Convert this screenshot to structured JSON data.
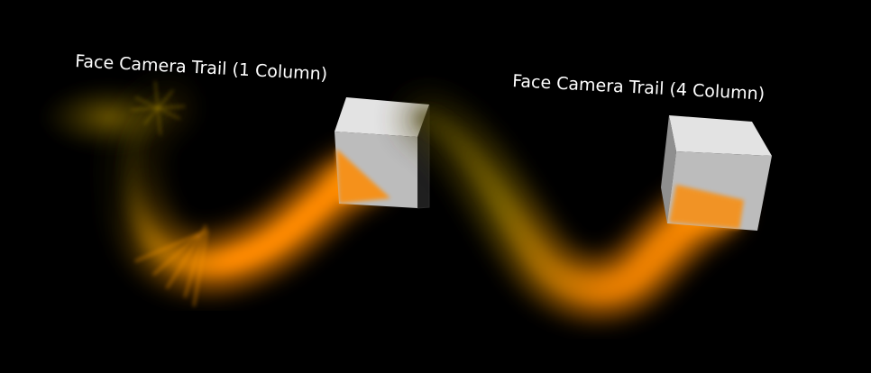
{
  "scene": {
    "background_color": "#000000",
    "labels": {
      "left": "Face Camera Trail (1 Column)",
      "right": "Face Camera Trail (4 Column)"
    },
    "trail_colors": {
      "head": "#ff8a00",
      "fade": "#6b5a00"
    },
    "cube_colors": {
      "top": "#e3e3e3",
      "front": "#bcbcbc",
      "side": "#8f8f8f"
    }
  }
}
